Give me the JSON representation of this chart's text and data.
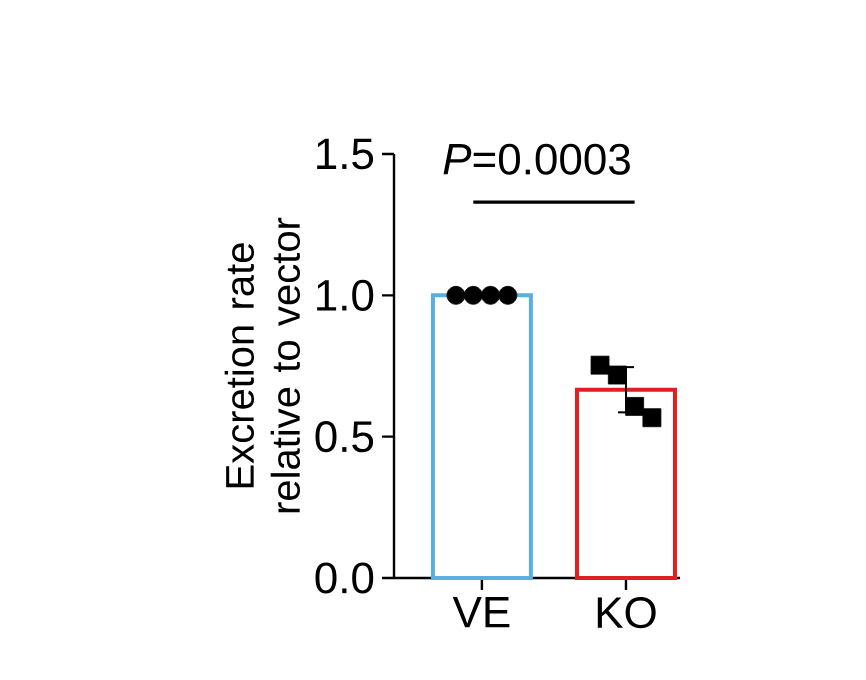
{
  "chart_data": {
    "type": "bar",
    "ylabel": "Excretion rate relative to vector",
    "categories": [
      "VE",
      "KO"
    ],
    "values": [
      1.0,
      0.666
    ],
    "colors": [
      "#5aaee0",
      "#e02020"
    ],
    "errors": [
      null,
      0.08
    ],
    "series": [
      {
        "type": "scatter",
        "marker": "circle",
        "color": "#000000",
        "x": [
          "VE",
          "VE",
          "VE",
          "VE"
        ],
        "values": [
          1.0,
          1.0,
          1.0,
          1.0
        ]
      },
      {
        "type": "scatter",
        "marker": "square",
        "color": "#000000",
        "x": [
          "KO",
          "KO",
          "KO",
          "KO"
        ],
        "values": [
          0.753,
          0.718,
          0.607,
          0.567
        ]
      }
    ],
    "ylim": [
      0,
      1.5
    ],
    "yticks": [
      {
        "value": 0,
        "label": "0.0"
      },
      {
        "value": 0.5,
        "label": "0.5"
      },
      {
        "value": 1,
        "label": "1.0"
      },
      {
        "value": 1.5,
        "label": "1.5"
      }
    ],
    "annotations": [
      "*P*=0.0003"
    ],
    "grid": false
  }
}
